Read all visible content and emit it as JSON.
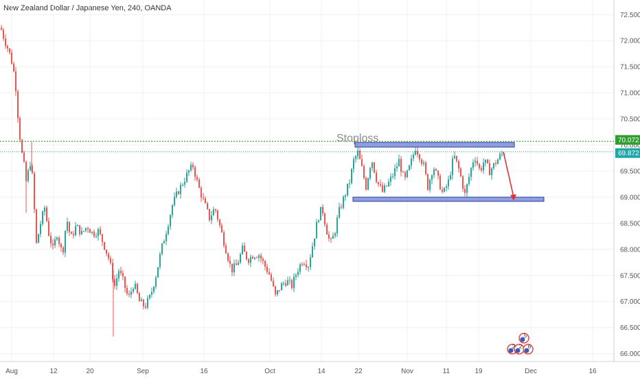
{
  "header": {
    "title": "New Zealand Dollar / Japanese Yen, 240, OANDA"
  },
  "chart_data": {
    "type": "candlestick",
    "title": "New Zealand Dollar / Japanese Yen, 240, OANDA",
    "xlabel": "",
    "ylabel": "",
    "ylim": [
      65.85,
      72.78
    ],
    "grid": true,
    "y_ticks": [
      "72.500",
      "72.000",
      "71.500",
      "71.000",
      "70.500",
      "70.000",
      "69.500",
      "69.000",
      "68.500",
      "68.000",
      "67.500",
      "67.000",
      "66.500",
      "66.000"
    ],
    "x_ticks": [
      "Aug",
      "12",
      "20",
      "Sep",
      "16",
      "Oct",
      "14",
      "22",
      "Nov",
      "11",
      "19",
      "Dec",
      "16"
    ],
    "price_labels": {
      "stop_level": {
        "value": 70.072,
        "text": "70.072",
        "color": "#2e9e2e"
      },
      "last_price": {
        "value": 69.872,
        "text": "69.872",
        "color": "#1fa6a6"
      }
    },
    "annotations": {
      "stoploss_text": "Stoploss",
      "resistance_zone": [
        69.96,
        70.05
      ],
      "support_zone": [
        68.92,
        69.0
      ],
      "arrow_target": 68.95
    },
    "event_badges": [
      "5",
      "2",
      "2",
      "6"
    ],
    "price_path": [
      [
        0,
        72.25
      ],
      [
        6,
        72.0
      ],
      [
        12,
        71.8
      ],
      [
        18,
        71.5
      ],
      [
        22,
        71.1
      ],
      [
        26,
        70.4
      ],
      [
        30,
        69.9
      ],
      [
        34,
        69.6
      ],
      [
        38,
        69.2
      ],
      [
        42,
        69.75
      ],
      [
        46,
        69.4
      ],
      [
        52,
        68.1
      ],
      [
        58,
        68.5
      ],
      [
        64,
        68.8
      ],
      [
        70,
        68.3
      ],
      [
        76,
        68.0
      ],
      [
        82,
        68.3
      ],
      [
        90,
        67.9
      ],
      [
        96,
        68.6
      ],
      [
        102,
        68.2
      ],
      [
        110,
        68.45
      ],
      [
        118,
        68.3
      ],
      [
        126,
        68.45
      ],
      [
        134,
        68.3
      ],
      [
        142,
        68.35
      ],
      [
        150,
        68.1
      ],
      [
        158,
        67.8
      ],
      [
        166,
        67.3
      ],
      [
        172,
        67.6
      ],
      [
        178,
        67.4
      ],
      [
        186,
        67.05
      ],
      [
        194,
        67.35
      ],
      [
        202,
        67.0
      ],
      [
        210,
        66.9
      ],
      [
        218,
        67.1
      ],
      [
        226,
        67.5
      ],
      [
        234,
        68.0
      ],
      [
        242,
        68.4
      ],
      [
        250,
        68.85
      ],
      [
        258,
        69.1
      ],
      [
        266,
        69.3
      ],
      [
        274,
        69.5
      ],
      [
        280,
        69.6
      ],
      [
        288,
        69.2
      ],
      [
        296,
        68.9
      ],
      [
        304,
        68.6
      ],
      [
        312,
        68.8
      ],
      [
        320,
        68.4
      ],
      [
        328,
        68.0
      ],
      [
        336,
        67.6
      ],
      [
        344,
        67.7
      ],
      [
        352,
        68.0
      ],
      [
        360,
        67.8
      ],
      [
        368,
        67.9
      ],
      [
        376,
        67.9
      ],
      [
        384,
        67.7
      ],
      [
        392,
        67.5
      ],
      [
        400,
        67.1
      ],
      [
        408,
        67.3
      ],
      [
        416,
        67.4
      ],
      [
        424,
        67.3
      ],
      [
        432,
        67.6
      ],
      [
        440,
        67.8
      ],
      [
        448,
        67.7
      ],
      [
        456,
        68.2
      ],
      [
        462,
        68.6
      ],
      [
        468,
        68.8
      ],
      [
        474,
        68.4
      ],
      [
        480,
        68.1
      ],
      [
        486,
        68.3
      ],
      [
        492,
        68.7
      ],
      [
        500,
        69.0
      ],
      [
        508,
        69.3
      ],
      [
        514,
        69.7
      ],
      [
        520,
        69.85
      ],
      [
        526,
        69.55
      ],
      [
        532,
        69.2
      ],
      [
        540,
        69.75
      ],
      [
        548,
        69.3
      ],
      [
        556,
        69.1
      ],
      [
        564,
        69.25
      ],
      [
        572,
        69.45
      ],
      [
        580,
        69.7
      ],
      [
        588,
        69.3
      ],
      [
        596,
        69.6
      ],
      [
        604,
        69.95
      ],
      [
        610,
        69.8
      ],
      [
        616,
        69.6
      ],
      [
        622,
        69.2
      ],
      [
        630,
        69.6
      ],
      [
        638,
        69.3
      ],
      [
        644,
        69.05
      ],
      [
        652,
        69.3
      ],
      [
        660,
        69.8
      ],
      [
        668,
        69.5
      ],
      [
        676,
        69.05
      ],
      [
        684,
        69.5
      ],
      [
        690,
        69.8
      ],
      [
        698,
        69.5
      ],
      [
        704,
        69.7
      ],
      [
        712,
        69.5
      ],
      [
        720,
        69.65
      ],
      [
        728,
        69.8
      ],
      [
        734,
        69.87
      ]
    ]
  }
}
